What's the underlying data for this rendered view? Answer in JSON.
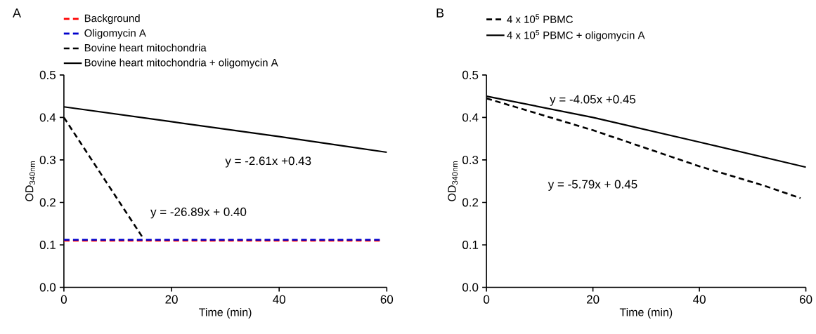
{
  "chart_data": [
    {
      "type": "line",
      "title": "A",
      "xlabel": "Time (min)",
      "ylabel": "OD$_{340nm}$",
      "legend": "top",
      "xlim": [
        0,
        60
      ],
      "ylim": [
        0,
        0.5
      ],
      "xticks": [
        0,
        20,
        40,
        60
      ],
      "yticks": [
        {
          "value": 0,
          "label": "0.0"
        },
        0.1,
        0.2,
        0.3,
        0.4,
        0.5
      ],
      "series": [
        {
          "name": "Background",
          "color": "#ff0000",
          "line_style": "dashed",
          "x": [
            0,
            59
          ],
          "values": [
            0.11,
            0.11
          ]
        },
        {
          "name": "Oligomycin A",
          "color": "#0000cc",
          "line_style": "dashed",
          "x": [
            0,
            59
          ],
          "values": [
            0.112,
            0.112
          ]
        },
        {
          "name": "Bovine heart mitochondria",
          "color": "#000000",
          "line_style": "dashed",
          "x": [
            0,
            14.5
          ],
          "values": [
            0.4,
            0.12
          ]
        },
        {
          "name": "Bovine heart mitochondria + oligomycin A",
          "color": "#000000",
          "line_style": "solid",
          "x": [
            0,
            20,
            40,
            60
          ],
          "values": [
            0.425,
            0.39,
            0.355,
            0.318
          ]
        }
      ],
      "annotations": [
        "y = -2.61x +0.43",
        "y = -26.89x + 0.40"
      ]
    },
    {
      "type": "line",
      "title": "B",
      "xlabel": "Time (min)",
      "ylabel": "OD$_{340nm}$",
      "legend": "top",
      "xlim": [
        0,
        60
      ],
      "ylim": [
        0,
        0.5
      ],
      "xticks": [
        0,
        20,
        40,
        60
      ],
      "yticks": [
        {
          "value": 0,
          "label": "0.0"
        },
        0.1,
        0.2,
        0.3,
        0.4,
        0.5
      ],
      "series": [
        {
          "name": "4 x 10$^{5}$ PBMC",
          "color": "#000000",
          "line_style": "dashed",
          "x": [
            0,
            20,
            40,
            52,
            59
          ],
          "values": [
            0.445,
            0.37,
            0.285,
            0.24,
            0.21
          ]
        },
        {
          "name": "4 x 10$^{5}$ PBMC + oligomycin A",
          "color": "#000000",
          "line_style": "solid",
          "x": [
            0,
            20,
            40,
            60
          ],
          "values": [
            0.45,
            0.4,
            0.342,
            0.283
          ]
        }
      ],
      "annotations": [
        "y = -4.05x +0.45",
        "y = -5.79x + 0.45"
      ]
    }
  ]
}
